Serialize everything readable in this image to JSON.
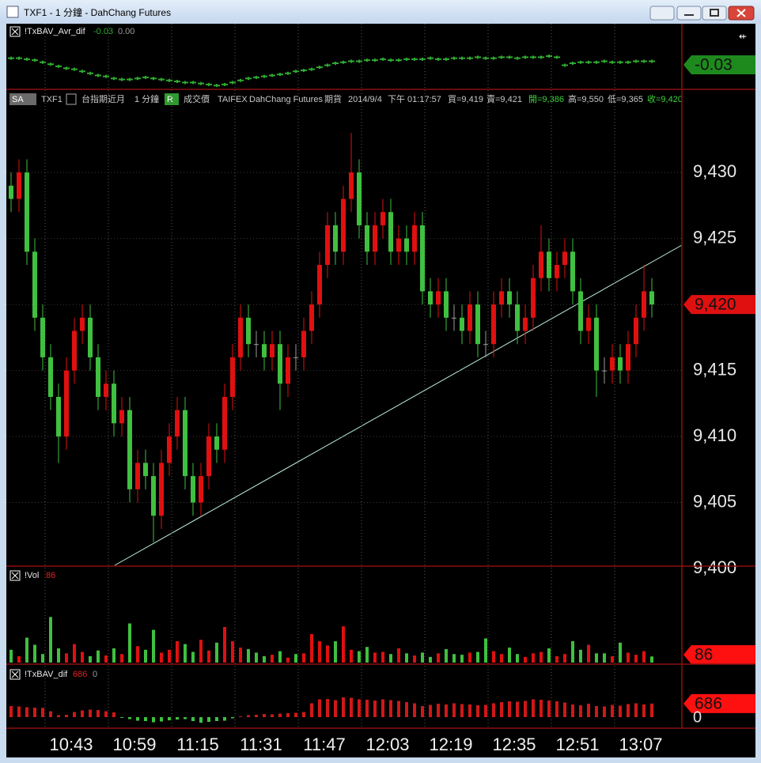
{
  "window": {
    "title": "TXF1 - 1 分鐘 - DahChang Futures"
  },
  "panels": {
    "avr_dif": {
      "name": "!TxBAV_Avr_dif",
      "value": "-0.03",
      "value2": "0.00",
      "label": "-0.03",
      "color": "#2fa82f",
      "ylim": [
        -0.3,
        0.2
      ],
      "values": [
        0.0,
        0.0,
        -0.01,
        -0.02,
        -0.04,
        -0.06,
        -0.08,
        -0.1,
        -0.11,
        -0.13,
        -0.15,
        -0.17,
        -0.18,
        -0.2,
        -0.21,
        -0.21,
        -0.2,
        -0.19,
        -0.2,
        -0.21,
        -0.22,
        -0.23,
        -0.24,
        -0.24,
        -0.25,
        -0.26,
        -0.27,
        -0.26,
        -0.24,
        -0.22,
        -0.2,
        -0.19,
        -0.18,
        -0.17,
        -0.16,
        -0.15,
        -0.13,
        -0.12,
        -0.11,
        -0.09,
        -0.07,
        -0.05,
        -0.04,
        -0.03,
        -0.03,
        -0.02,
        -0.02,
        -0.01,
        -0.02,
        -0.02,
        -0.01,
        -0.01,
        -0.01,
        0.0,
        -0.01,
        -0.01,
        0.0,
        0.0,
        0.0,
        0.01,
        0.0,
        0.0,
        0.01,
        0.01,
        0.0,
        0.01,
        0.01,
        0.01,
        0.02,
        0.01,
        -0.07,
        -0.05,
        -0.04,
        -0.04,
        -0.04,
        -0.03,
        -0.04,
        -0.04,
        -0.04,
        -0.03,
        -0.03,
        -0.03
      ]
    },
    "price": {
      "header": [
        {
          "text": "TXF1",
          "color": "#c8c8c8"
        },
        {
          "text": "台指期近月",
          "color": "#c8c8c8"
        },
        {
          "text": "1 分鐘",
          "color": "#c8c8c8"
        },
        {
          "text": "成交價",
          "color": "#c8c8c8"
        },
        {
          "text": "TAIFEX",
          "color": "#c8c8c8"
        },
        {
          "text": "DahChang Futures",
          "color": "#c8c8c8"
        },
        {
          "text": "期貨",
          "color": "#c8c8c8"
        },
        {
          "text": "2014/9/4",
          "color": "#c8c8c8"
        },
        {
          "text": "下午 01:17:57",
          "color": "#c8c8c8"
        },
        {
          "text": "買=9,419",
          "color": "#c8c8c8"
        },
        {
          "text": "賣=9,421",
          "color": "#c8c8c8"
        },
        {
          "text": "開=9,386",
          "color": "#3fd23f"
        },
        {
          "text": "高=9,550",
          "color": "#c8c8c8"
        },
        {
          "text": "低=9,365",
          "color": "#c8c8c8"
        },
        {
          "text": "收=9,420",
          "color": "#3fd23f"
        }
      ],
      "sa": "SA",
      "r": "R",
      "ylim": [
        9400,
        9436
      ],
      "yticks": [
        {
          "value": 9400,
          "label": "9,400"
        },
        {
          "value": 9405,
          "label": "9,405"
        },
        {
          "value": 9410,
          "label": "9,410"
        },
        {
          "value": 9415,
          "label": "9,415"
        },
        {
          "value": 9420,
          "label": "9,420"
        },
        {
          "value": 9425,
          "label": "9,425"
        },
        {
          "value": 9430,
          "label": "9,430"
        }
      ],
      "up_color": "#e01010",
      "down_color": "#40c040",
      "flat_color": "#9a9a9a",
      "last_label": "9,420",
      "open": [
        9429,
        9428,
        9430,
        9424,
        9419,
        9416,
        9413,
        9410,
        9415,
        9418,
        9419,
        9416,
        9413,
        9414,
        9411,
        9412,
        9406,
        9408,
        9407,
        9404,
        9408,
        9410,
        9412,
        9407,
        9405,
        9407,
        9410,
        9409,
        9413,
        9416,
        9419,
        9417,
        9417,
        9416,
        9417,
        9414,
        9416,
        9416,
        9418,
        9420,
        9423,
        9426,
        9424,
        9428,
        9430,
        9426,
        9424,
        9426,
        9427,
        9424,
        9425,
        9424,
        9426,
        9421,
        9420,
        9421,
        9419,
        9419,
        9418,
        9420,
        9417,
        9417,
        9420,
        9421,
        9420,
        9418,
        9419,
        9422,
        9424,
        9422,
        9423,
        9424,
        9421,
        9418,
        9419,
        9415,
        9415,
        9416,
        9415,
        9417,
        9419,
        9421
      ],
      "high": [
        9430,
        9431,
        9431,
        9425,
        9420,
        9417,
        9414,
        9416,
        9419,
        9420,
        9420,
        9417,
        9415,
        9415,
        9413,
        9413,
        9409,
        9409,
        9408,
        9409,
        9411,
        9413,
        9413,
        9408,
        9408,
        9411,
        9411,
        9414,
        9417,
        9420,
        9420,
        9418,
        9418,
        9418,
        9418,
        9417,
        9417,
        9419,
        9421,
        9424,
        9427,
        9427,
        9429,
        9433,
        9431,
        9427,
        9427,
        9428,
        9428,
        9426,
        9426,
        9427,
        9427,
        9422,
        9422,
        9422,
        9420,
        9420,
        9421,
        9421,
        9418,
        9421,
        9422,
        9422,
        9421,
        9420,
        9423,
        9426,
        9425,
        9424,
        9425,
        9425,
        9422,
        9420,
        9420,
        9416,
        9417,
        9417,
        9418,
        9420,
        9423,
        9422
      ],
      "low": [
        9427,
        9427,
        9423,
        9418,
        9415,
        9412,
        9408,
        9409,
        9414,
        9417,
        9415,
        9412,
        9412,
        9410,
        9410,
        9405,
        9405,
        9406,
        9402,
        9403,
        9407,
        9409,
        9406,
        9404,
        9404,
        9406,
        9408,
        9408,
        9412,
        9415,
        9416,
        9416,
        9415,
        9415,
        9412,
        9413,
        9415,
        9415,
        9417,
        9419,
        9422,
        9423,
        9423,
        9427,
        9425,
        9423,
        9423,
        9425,
        9423,
        9423,
        9423,
        9423,
        9420,
        9419,
        9419,
        9418,
        9418,
        9417,
        9417,
        9416,
        9416,
        9416,
        9419,
        9419,
        9417,
        9417,
        9418,
        9421,
        9421,
        9421,
        9422,
        9420,
        9417,
        9417,
        9413,
        9414,
        9414,
        9414,
        9414,
        9416,
        9418,
        9419
      ],
      "close": [
        9428,
        9430,
        9424,
        9419,
        9416,
        9413,
        9410,
        9415,
        9418,
        9419,
        9416,
        9413,
        9414,
        9411,
        9412,
        9406,
        9408,
        9407,
        9404,
        9408,
        9410,
        9412,
        9407,
        9405,
        9407,
        9410,
        9409,
        9413,
        9416,
        9419,
        9417,
        9417,
        9416,
        9417,
        9414,
        9416,
        9416,
        9418,
        9420,
        9423,
        9426,
        9424,
        9428,
        9430,
        9426,
        9424,
        9426,
        9427,
        9424,
        9425,
        9424,
        9426,
        9421,
        9420,
        9421,
        9419,
        9419,
        9418,
        9420,
        9417,
        9417,
        9420,
        9421,
        9420,
        9418,
        9419,
        9422,
        9424,
        9422,
        9423,
        9424,
        9421,
        9418,
        9419,
        9415,
        9415,
        9416,
        9415,
        9417,
        9419,
        9421,
        9420
      ]
    },
    "vol": {
      "name": "!Vol",
      "value": "86",
      "label": "86",
      "ylim": [
        0,
        1200
      ],
      "values": [
        180,
        90,
        350,
        250,
        120,
        640,
        200,
        130,
        260,
        150,
        90,
        170,
        100,
        200,
        120,
        550,
        230,
        180,
        460,
        140,
        180,
        300,
        260,
        150,
        320,
        170,
        280,
        500,
        300,
        210,
        190,
        140,
        90,
        110,
        160,
        70,
        120,
        130,
        400,
        300,
        240,
        300,
        510,
        180,
        160,
        220,
        140,
        150,
        120,
        200,
        130,
        100,
        140,
        80,
        130,
        190,
        120,
        110,
        140,
        150,
        340,
        160,
        120,
        210,
        120,
        80,
        130,
        150,
        200,
        90,
        120,
        300,
        180,
        250,
        130,
        130,
        90,
        280,
        140,
        110,
        160,
        86
      ]
    },
    "dif": {
      "name": "!TxBAV_dif",
      "value": "686",
      "value2": "0",
      "label": "686",
      "zero_label": "0",
      "ylim": [
        -320,
        2280
      ],
      "pos_color": "#d01818",
      "neg_color": "#40c040",
      "values": [
        560,
        540,
        500,
        480,
        470,
        300,
        100,
        120,
        260,
        340,
        380,
        360,
        300,
        240,
        -40,
        -100,
        -180,
        -200,
        -260,
        -220,
        -160,
        -120,
        -100,
        -200,
        -280,
        -240,
        -200,
        -180,
        -60,
        40,
        100,
        120,
        160,
        140,
        180,
        200,
        220,
        260,
        700,
        900,
        920,
        860,
        1000,
        980,
        900,
        880,
        840,
        900,
        860,
        820,
        760,
        700,
        560,
        620,
        680,
        640,
        700,
        660,
        640,
        600,
        620,
        700,
        760,
        800,
        780,
        820,
        900,
        880,
        840,
        800,
        740,
        640,
        600,
        680,
        560,
        540,
        620,
        580,
        660,
        700,
        640,
        686
      ]
    },
    "time_labels": [
      "10:43",
      "10:59",
      "11:15",
      "11:31",
      "11:47",
      "12:03",
      "12:19",
      "12:35",
      "12:51",
      "13:07"
    ]
  }
}
